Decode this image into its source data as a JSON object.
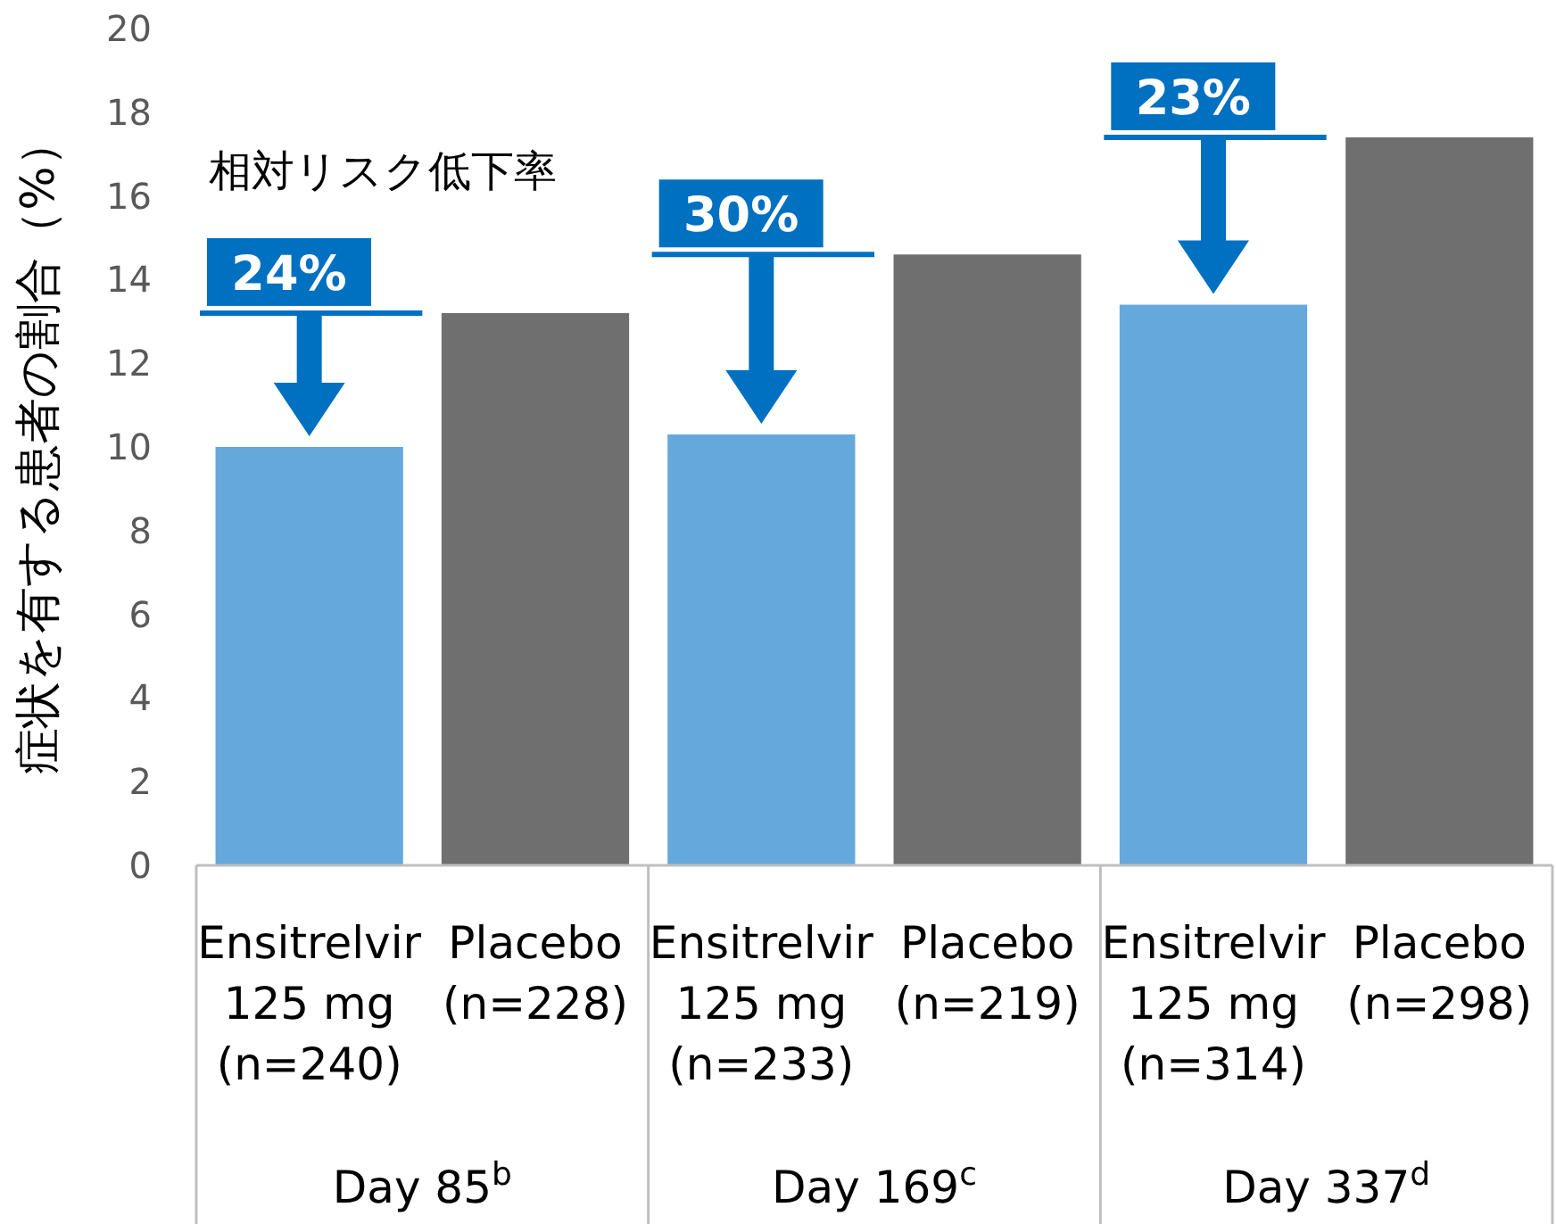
{
  "chart_data": {
    "type": "bar",
    "ylabel": "症状を有する患者の割合（%）",
    "categories": [
      "Ensitrelvir\n125 mg\n(n=240)",
      "Placebo\n(n=228)",
      "Ensitrelvir\n125 mg\n(n=233)",
      "Placebo\n(n=219)",
      "Ensitrelvir\n125 mg\n(n=314)",
      "Placebo\n(n=298)"
    ],
    "values": [
      10.0,
      13.2,
      10.3,
      14.6,
      13.4,
      17.4
    ],
    "colors": [
      "#65a8dc",
      "#6f6f6f",
      "#65a8dc",
      "#6f6f6f",
      "#65a8dc",
      "#6f6f6f"
    ],
    "ylim": [
      0,
      20
    ],
    "yticks": [
      0,
      2,
      4,
      6,
      8,
      10,
      12,
      14,
      16,
      18,
      20
    ],
    "annotations": [
      "相対リスク低下率",
      "24%",
      "30%",
      "23%",
      "Day 85$^{b}$",
      "Day 169$^{c}$",
      "Day 337$^{d}$"
    ]
  }
}
